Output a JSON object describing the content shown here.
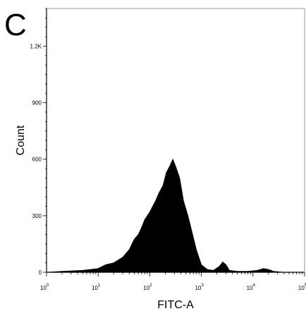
{
  "panel_label": "C",
  "chart_data": {
    "type": "area",
    "title": "",
    "xlabel": "FITC-A",
    "ylabel": "Count",
    "xscale": "log",
    "xlim": [
      1,
      100000
    ],
    "ylim": [
      0,
      1400
    ],
    "x_ticks": [
      {
        "base": "10",
        "exp": "0",
        "value": 1
      },
      {
        "base": "10",
        "exp": "1",
        "value": 10
      },
      {
        "base": "10",
        "exp": "2",
        "value": 100
      },
      {
        "base": "10",
        "exp": "3",
        "value": 1000
      },
      {
        "base": "10",
        "exp": "4",
        "value": 10000
      },
      {
        "base": "10",
        "exp": "5",
        "value": 100000
      }
    ],
    "y_ticks": [
      {
        "label": "0",
        "value": 0
      },
      {
        "label": "300",
        "value": 300
      },
      {
        "label": "600",
        "value": 600
      },
      {
        "label": "900",
        "value": 900
      },
      {
        "label": "1.2K",
        "value": 1200
      }
    ],
    "grid": false,
    "fill_color": "#000000",
    "x": [
      1,
      2,
      5,
      10,
      14,
      20,
      30,
      40,
      50,
      60,
      70,
      80,
      100,
      130,
      150,
      180,
      210,
      240,
      280,
      320,
      380,
      450,
      550,
      650,
      800,
      1000,
      1300,
      1700,
      2200,
      2600,
      3000,
      3500,
      5000,
      8000,
      12000,
      16000,
      20000,
      25000,
      40000,
      100000
    ],
    "y": [
      0,
      5,
      10,
      20,
      40,
      50,
      80,
      120,
      175,
      200,
      240,
      280,
      320,
      380,
      420,
      460,
      530,
      560,
      600,
      560,
      500,
      380,
      300,
      220,
      120,
      40,
      15,
      10,
      30,
      55,
      40,
      10,
      5,
      5,
      10,
      20,
      15,
      5,
      0,
      0
    ]
  }
}
